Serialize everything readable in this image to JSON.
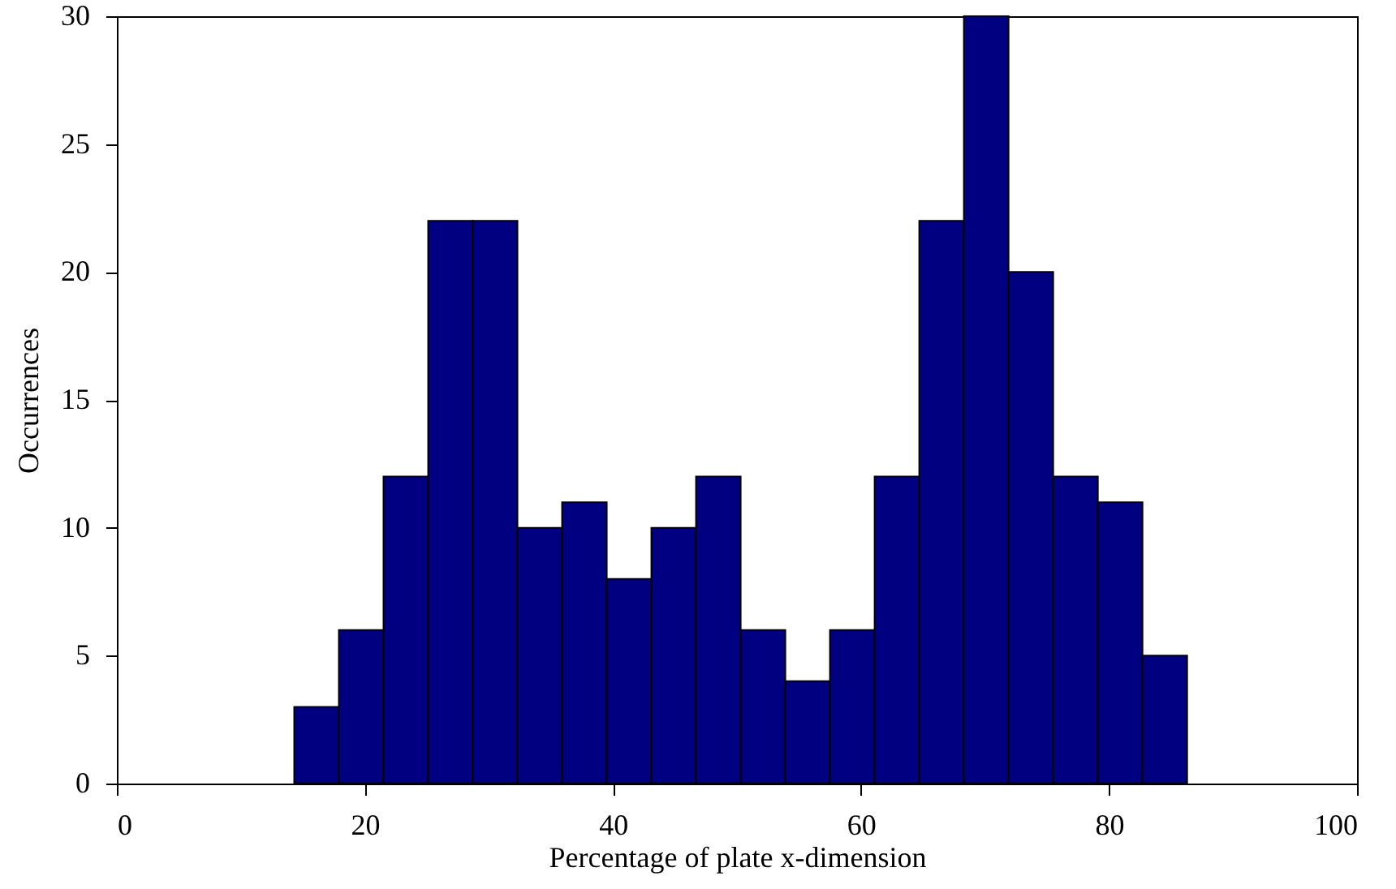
{
  "chart_data": {
    "type": "histogram",
    "xlabel": "Percentage of plate x-dimension",
    "ylabel": "Occurrences",
    "bins": [
      14.3,
      17.9,
      21.5,
      25.1,
      28.7,
      32.3,
      35.9,
      39.5,
      43.1,
      46.7,
      50.3,
      53.9,
      57.5,
      61.1,
      64.7,
      68.3,
      71.9,
      75.5,
      79.1,
      82.7,
      86.3
    ],
    "values": [
      3,
      6,
      12,
      22,
      22,
      10,
      11,
      8,
      10,
      12,
      6,
      4,
      6,
      12,
      22,
      30,
      20,
      12,
      11,
      5
    ],
    "color": "#000080",
    "xlim": [
      0,
      100
    ],
    "xticks": [
      0,
      20,
      40,
      60,
      80,
      100
    ],
    "ylim": [
      0,
      30
    ],
    "yticks": [
      0,
      5,
      10,
      15,
      20,
      25,
      30
    ],
    "grid": false
  }
}
